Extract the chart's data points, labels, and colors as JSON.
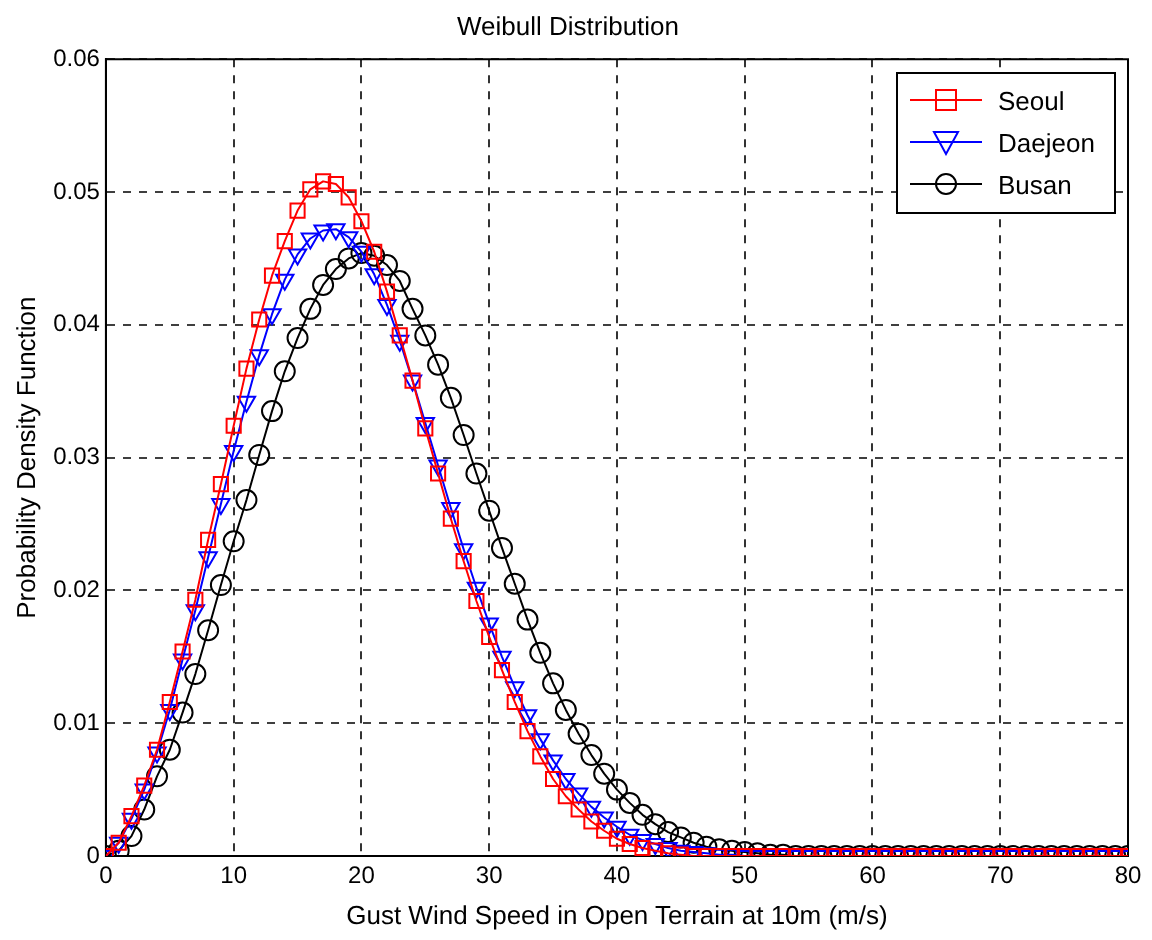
{
  "chart_data": {
    "type": "line",
    "title": "Weibull Distribution",
    "xlabel": "Gust Wind Speed in Open Terrain at 10m (m/s)",
    "ylabel": "Probability Density Function",
    "x": [
      0,
      1,
      2,
      3,
      4,
      5,
      6,
      7,
      8,
      9,
      10,
      11,
      12,
      13,
      14,
      15,
      16,
      17,
      18,
      19,
      20,
      21,
      22,
      23,
      24,
      25,
      26,
      27,
      28,
      29,
      30,
      31,
      32,
      33,
      34,
      35,
      36,
      37,
      38,
      39,
      40,
      41,
      42,
      43,
      44,
      45,
      46,
      47,
      48,
      49,
      50,
      51,
      52,
      53,
      54,
      55,
      56,
      57,
      58,
      59,
      60,
      61,
      62,
      63,
      64,
      65,
      66,
      67,
      68,
      69,
      70,
      71,
      72,
      73,
      74,
      75,
      76,
      77,
      78,
      79,
      80
    ],
    "series": [
      {
        "name": "Seoul",
        "color": "#ff0000",
        "marker": "square",
        "values": [
          0,
          0.001,
          0.003,
          0.0053,
          0.008,
          0.0116,
          0.0154,
          0.0193,
          0.0238,
          0.028,
          0.0324,
          0.0367,
          0.0404,
          0.0437,
          0.0463,
          0.0486,
          0.0502,
          0.0508,
          0.0506,
          0.0496,
          0.0478,
          0.0455,
          0.0425,
          0.0392,
          0.0358,
          0.0322,
          0.0288,
          0.0254,
          0.0222,
          0.0192,
          0.0165,
          0.014,
          0.0116,
          0.0094,
          0.0075,
          0.0058,
          0.0045,
          0.0035,
          0.0026,
          0.0019,
          0.0013,
          0.0009,
          0.0006,
          0.0004,
          0.0002,
          0.0001,
          0,
          0,
          0,
          0,
          0,
          0,
          0,
          0,
          0,
          0,
          0,
          0,
          0,
          0,
          0,
          0,
          0,
          0,
          0,
          0,
          0,
          0,
          0,
          0,
          0,
          0,
          0,
          0,
          0,
          0,
          0,
          0,
          0,
          0,
          0
        ]
      },
      {
        "name": "Daejeon",
        "color": "#0000ff",
        "marker": "triangle",
        "values": [
          0,
          0.001,
          0.0028,
          0.005,
          0.0078,
          0.011,
          0.0148,
          0.0185,
          0.0225,
          0.0265,
          0.0305,
          0.0342,
          0.0377,
          0.0408,
          0.0434,
          0.0453,
          0.0465,
          0.0471,
          0.0472,
          0.0466,
          0.0455,
          0.0438,
          0.0415,
          0.0388,
          0.0358,
          0.0326,
          0.0294,
          0.0262,
          0.0231,
          0.0202,
          0.0175,
          0.015,
          0.0127,
          0.0106,
          0.0088,
          0.0072,
          0.0058,
          0.0047,
          0.0037,
          0.0029,
          0.0022,
          0.0016,
          0.0012,
          0.0009,
          0.0006,
          0.0004,
          0.0003,
          0.0002,
          0.0001,
          0.0001,
          0,
          0,
          0,
          0,
          0,
          0,
          0,
          0,
          0,
          0,
          0,
          0,
          0,
          0,
          0,
          0,
          0,
          0,
          0,
          0,
          0,
          0,
          0,
          0,
          0,
          0,
          0,
          0,
          0,
          0,
          0
        ]
      },
      {
        "name": "Busan",
        "color": "#000000",
        "marker": "circle",
        "values": [
          0,
          0.0004,
          0.0015,
          0.0035,
          0.006,
          0.008,
          0.0108,
          0.0137,
          0.017,
          0.0204,
          0.0237,
          0.0268,
          0.0302,
          0.0335,
          0.0365,
          0.039,
          0.0412,
          0.043,
          0.0442,
          0.045,
          0.0454,
          0.0452,
          0.0445,
          0.0433,
          0.0412,
          0.0392,
          0.037,
          0.0345,
          0.0317,
          0.0288,
          0.026,
          0.0232,
          0.0205,
          0.0178,
          0.0153,
          0.013,
          0.011,
          0.0092,
          0.0076,
          0.0062,
          0.005,
          0.004,
          0.0031,
          0.0024,
          0.0018,
          0.0014,
          0.001,
          0.0007,
          0.0005,
          0.0004,
          0.0003,
          0.0002,
          0.0001,
          0.0001,
          0,
          0,
          0,
          0,
          0,
          0,
          0,
          0,
          0,
          0,
          0,
          0,
          0,
          0,
          0,
          0,
          0,
          0,
          0,
          0,
          0,
          0,
          0,
          0,
          0,
          0,
          0
        ]
      }
    ],
    "xlim": [
      0,
      80
    ],
    "xticks": [
      0,
      10,
      20,
      30,
      40,
      50,
      60,
      70,
      80
    ],
    "ylim": [
      0,
      0.06
    ],
    "yticks": [
      0,
      0.01,
      0.02,
      0.03,
      0.04,
      0.05,
      0.06
    ],
    "grid": true,
    "legend": "top right",
    "line_style": "solid"
  }
}
